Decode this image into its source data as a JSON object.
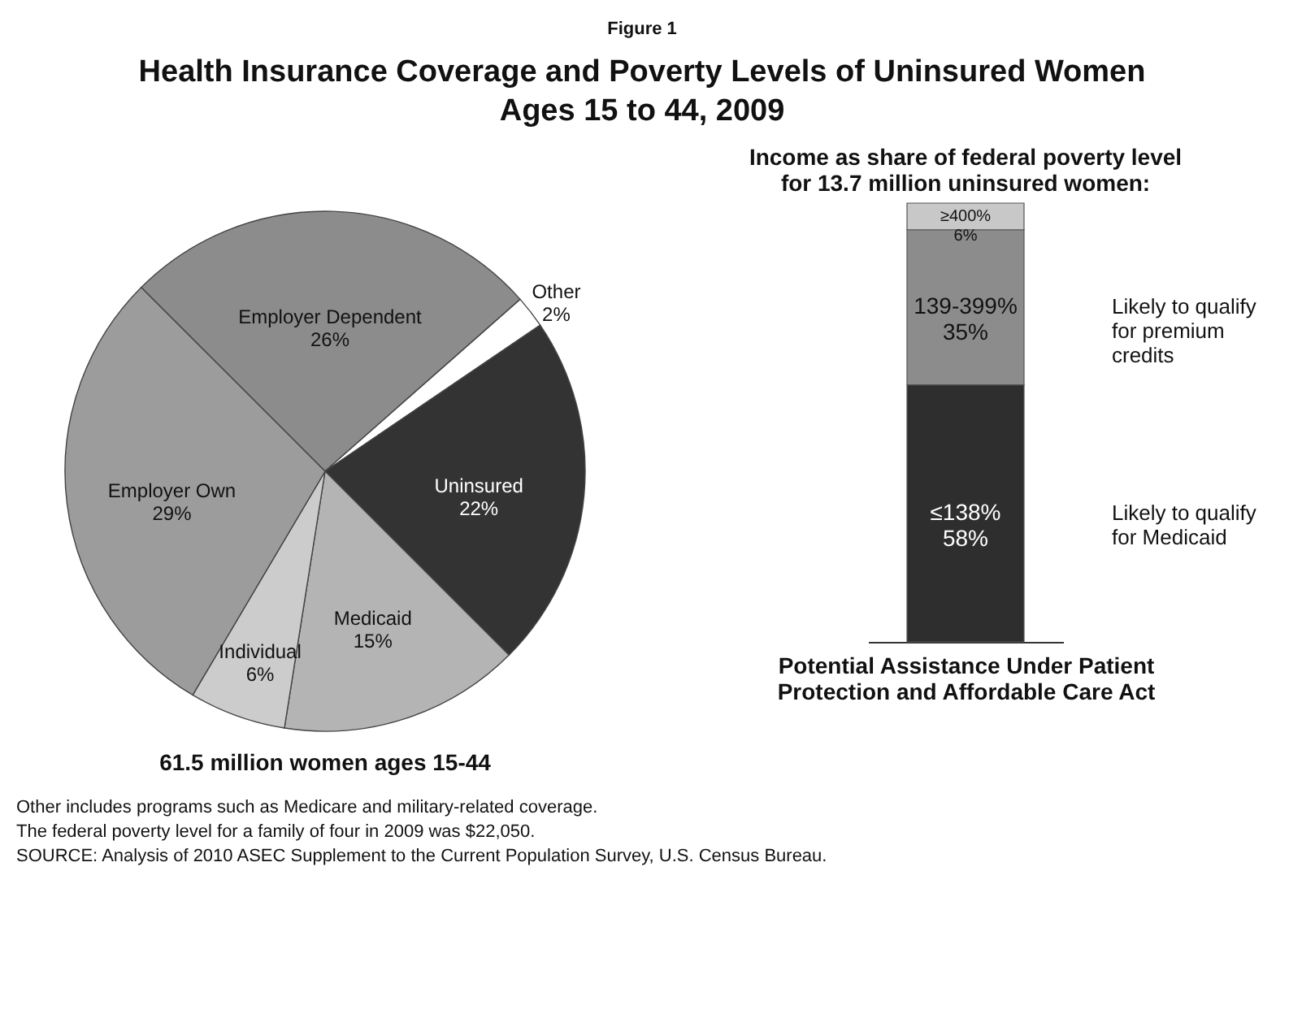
{
  "chart_data": [
    {
      "type": "pie",
      "title": "Health Insurance Coverage and Poverty Levels of Uninsured Women Ages 15 to 44, 2009",
      "categories": [
        "Employer Dependent",
        "Other",
        "Uninsured",
        "Medicaid",
        "Individual",
        "Employer Own"
      ],
      "values": [
        26,
        2,
        22,
        15,
        6,
        29
      ],
      "value_labels": [
        "26%",
        "2%",
        "22%",
        "15%",
        "6%",
        "29%"
      ],
      "colors": [
        "#8c8c8c",
        "#ffffff",
        "#333333",
        "#b4b4b4",
        "#cccccc",
        "#9c9c9c"
      ],
      "annotations": [
        "Figure 1",
        "61.5 million women ages 15-44",
        "Other  includes programs such as Medicare and military-related coverage.",
        "The federal poverty level for a family of four in 2009 was $22,050.",
        "SOURCE: Analysis of 2010 ASEC Supplement to the Current Population Survey, U.S. Census Bureau."
      ]
    },
    {
      "type": "bar",
      "stacked": true,
      "title": "Income as share of federal poverty level for 13.7 million uninsured women:",
      "xlabel": "Potential Assistance Under Patient Protection and Affordable Care Act",
      "categories": [
        null
      ],
      "ylim": [
        0,
        99
      ],
      "tick_labels": false,
      "series": [
        {
          "name": "≤138%",
          "color": "#2e2e2e",
          "values": [
            58
          ],
          "value_labels": [
            "58%"
          ]
        },
        {
          "name": "139-399%",
          "color": "#8c8c8c",
          "values": [
            35
          ],
          "value_labels": [
            "35%"
          ]
        },
        {
          "name": "≥400%",
          "color": "#c8c8c8",
          "values": [
            6
          ],
          "value_labels": [
            "6%"
          ]
        }
      ],
      "annotations": [
        "Likely to qualify for premium credits",
        "Likely to qualify for Medicaid"
      ]
    }
  ]
}
